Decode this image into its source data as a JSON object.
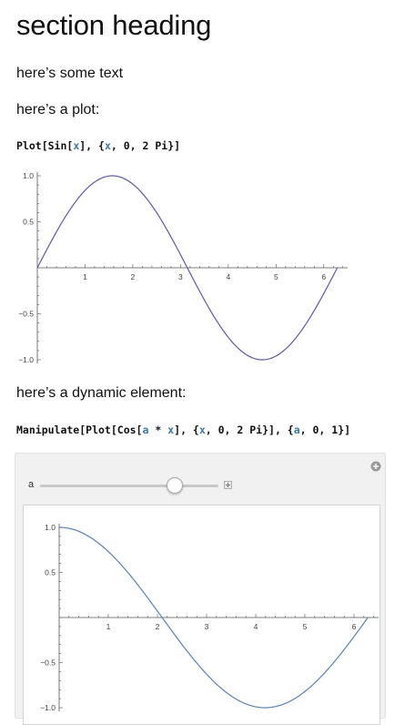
{
  "heading": "section heading",
  "paragraphs": {
    "intro": "here’s some text",
    "plot_intro": "here’s a plot:",
    "dynamic_intro": "here’s a dynamic element:"
  },
  "code": {
    "plot_cmd": [
      {
        "t": "Plot[Sin[",
        "c": "k"
      },
      {
        "t": "x",
        "c": "v"
      },
      {
        "t": "], {",
        "c": "k"
      },
      {
        "t": "x",
        "c": "v"
      },
      {
        "t": ", 0, 2 Pi}]",
        "c": "k"
      }
    ],
    "manipulate_cmd": [
      {
        "t": "Manipulate[Plot[Cos[",
        "c": "k"
      },
      {
        "t": "a",
        "c": "v"
      },
      {
        "t": " * ",
        "c": "k"
      },
      {
        "t": "x",
        "c": "v"
      },
      {
        "t": "], {",
        "c": "k"
      },
      {
        "t": "x",
        "c": "v"
      },
      {
        "t": ", 0, 2 Pi}], {",
        "c": "k"
      },
      {
        "t": "a",
        "c": "v"
      },
      {
        "t": ", 0, 1}]",
        "c": "k"
      }
    ]
  },
  "manipulate": {
    "slider_label": "a",
    "slider_value": 0.75,
    "plus_icon": "plus-icon",
    "options_icon": "plus-circle-icon"
  },
  "colors": {
    "plot1_line": "#5e5aa8",
    "plot2_line": "#5b82b3",
    "accent_var": "#3a7aa8"
  },
  "chart_data": [
    {
      "type": "line",
      "title": "",
      "xlabel": "",
      "ylabel": "",
      "function": "Sin[x]",
      "x_range": [
        0,
        6.283
      ],
      "xlim": [
        0,
        6.5
      ],
      "ylim": [
        -1,
        1
      ],
      "xticks": [
        "1",
        "2",
        "3",
        "4",
        "5",
        "6"
      ],
      "yticks": [
        "1.0",
        "0.5",
        "-0.5",
        "-1.0"
      ],
      "series": [
        {
          "values_fn": "sin",
          "a": 1
        }
      ],
      "grid": false
    },
    {
      "type": "line",
      "title": "",
      "xlabel": "",
      "ylabel": "",
      "function": "Cos[a x]",
      "a": 0.75,
      "x_range": [
        0,
        6.283
      ],
      "xlim": [
        0,
        6.5
      ],
      "ylim": [
        -1,
        1
      ],
      "xticks": [
        "1",
        "2",
        "3",
        "4",
        "5",
        "6"
      ],
      "yticks": [
        "1.0",
        "0.5",
        "-0.5",
        "-1.0"
      ],
      "series": [
        {
          "values_fn": "cos",
          "a": 0.75
        }
      ],
      "grid": false
    }
  ]
}
